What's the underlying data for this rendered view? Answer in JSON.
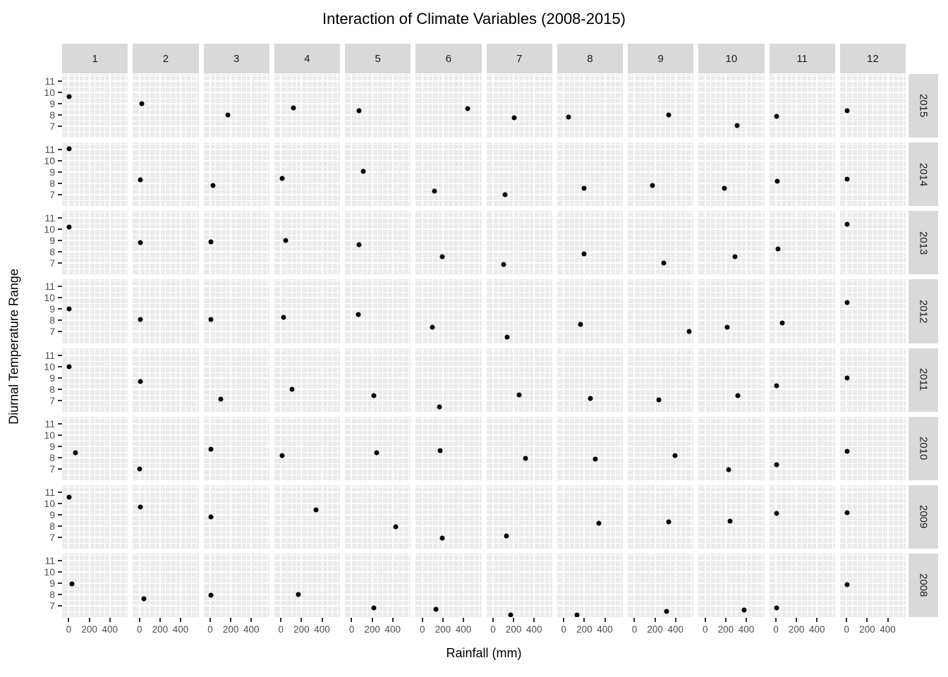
{
  "title": "Interaction of Climate Variables (2008-2015)",
  "chart_data": {
    "type": "scatter",
    "title": "Interaction of Climate Variables (2008-2015)",
    "xlabel": "Rainfall (mm)",
    "ylabel": "Diurnal Temperature Range",
    "facet_col_labels": [
      "1",
      "2",
      "3",
      "4",
      "5",
      "6",
      "7",
      "8",
      "9",
      "10",
      "11",
      "12"
    ],
    "facet_row_labels": [
      "2015",
      "2014",
      "2013",
      "2012",
      "2011",
      "2010",
      "2009",
      "2008"
    ],
    "x_ticks": [
      0,
      200,
      400
    ],
    "y_ticks": [
      11,
      10,
      9,
      8,
      7
    ],
    "x_domain": [
      -65,
      575
    ],
    "y_domain": [
      6.0,
      11.625
    ],
    "x_minor_step": 50,
    "y_minor_step": 0.5,
    "grid": true,
    "legend": "none",
    "point_style": "filled black circle, one observation per month-year facet",
    "series": [
      {
        "year": "2015",
        "points_by_month": [
          [
            5,
            9.6
          ],
          [
            20,
            9.0
          ],
          [
            170,
            8.0
          ],
          [
            125,
            8.65
          ],
          [
            75,
            8.35
          ],
          [
            440,
            8.55
          ],
          [
            205,
            7.75
          ],
          [
            45,
            7.8
          ],
          [
            330,
            8.0
          ],
          [
            310,
            7.05
          ],
          [
            10,
            7.9
          ],
          [
            5,
            8.4
          ]
        ]
      },
      {
        "year": "2014",
        "points_by_month": [
          [
            5,
            11.05
          ],
          [
            10,
            8.3
          ],
          [
            25,
            7.85
          ],
          [
            10,
            8.45
          ],
          [
            115,
            9.1
          ],
          [
            120,
            7.3
          ],
          [
            120,
            7.0
          ],
          [
            200,
            7.6
          ],
          [
            175,
            7.8
          ],
          [
            185,
            7.55
          ],
          [
            15,
            8.2
          ],
          [
            5,
            8.4
          ]
        ]
      },
      {
        "year": "2013",
        "points_by_month": [
          [
            5,
            10.2
          ],
          [
            10,
            8.85
          ],
          [
            10,
            8.9
          ],
          [
            45,
            9.0
          ],
          [
            70,
            8.65
          ],
          [
            195,
            7.6
          ],
          [
            100,
            6.9
          ],
          [
            195,
            7.85
          ],
          [
            285,
            7.0
          ],
          [
            290,
            7.6
          ],
          [
            20,
            8.3
          ],
          [
            5,
            10.45
          ]
        ]
      },
      {
        "year": "2012",
        "points_by_month": [
          [
            5,
            9.05
          ],
          [
            10,
            8.1
          ],
          [
            10,
            8.1
          ],
          [
            25,
            8.3
          ],
          [
            65,
            8.55
          ],
          [
            100,
            7.4
          ],
          [
            135,
            6.55
          ],
          [
            160,
            7.65
          ],
          [
            535,
            7.0
          ],
          [
            215,
            7.4
          ],
          [
            65,
            7.8
          ],
          [
            5,
            9.6
          ]
        ]
      },
      {
        "year": "2011",
        "points_by_month": [
          [
            5,
            9.95
          ],
          [
            10,
            8.65
          ],
          [
            105,
            7.1
          ],
          [
            110,
            7.95
          ],
          [
            215,
            7.4
          ],
          [
            170,
            6.4
          ],
          [
            255,
            7.5
          ],
          [
            260,
            7.15
          ],
          [
            240,
            7.05
          ],
          [
            315,
            7.4
          ],
          [
            5,
            8.3
          ],
          [
            5,
            9.0
          ]
        ]
      },
      {
        "year": "2010",
        "points_by_month": [
          [
            65,
            8.4
          ],
          [
            5,
            7.0
          ],
          [
            5,
            8.75
          ],
          [
            10,
            8.15
          ],
          [
            245,
            8.4
          ],
          [
            175,
            8.6
          ],
          [
            315,
            7.95
          ],
          [
            310,
            7.85
          ],
          [
            395,
            8.15
          ],
          [
            230,
            6.9
          ],
          [
            10,
            7.35
          ],
          [
            5,
            8.55
          ]
        ]
      },
      {
        "year": "2009",
        "points_by_month": [
          [
            5,
            10.55
          ],
          [
            10,
            9.65
          ],
          [
            10,
            8.8
          ],
          [
            340,
            9.45
          ],
          [
            430,
            7.9
          ],
          [
            195,
            6.9
          ],
          [
            130,
            7.1
          ],
          [
            340,
            8.25
          ],
          [
            330,
            8.35
          ],
          [
            240,
            8.4
          ],
          [
            10,
            9.1
          ],
          [
            5,
            9.15
          ]
        ]
      },
      {
        "year": "2008",
        "points_by_month": [
          [
            30,
            8.95
          ],
          [
            40,
            7.6
          ],
          [
            10,
            7.95
          ],
          [
            170,
            8.0
          ],
          [
            215,
            6.8
          ],
          [
            130,
            6.7
          ],
          [
            175,
            6.2
          ],
          [
            130,
            6.2
          ],
          [
            315,
            6.5
          ],
          [
            380,
            6.65
          ],
          [
            10,
            6.8
          ],
          [
            5,
            8.9
          ]
        ]
      }
    ]
  },
  "colors": {
    "background": "#FFFFFF",
    "panel_background": "#EBEBEB",
    "gridline": "#FFFFFF",
    "strip_background": "#D9D9D9",
    "strip_text": "#1A1A1A",
    "tick_label": "#4D4D4D",
    "point": "#000000",
    "title": "#000000"
  }
}
